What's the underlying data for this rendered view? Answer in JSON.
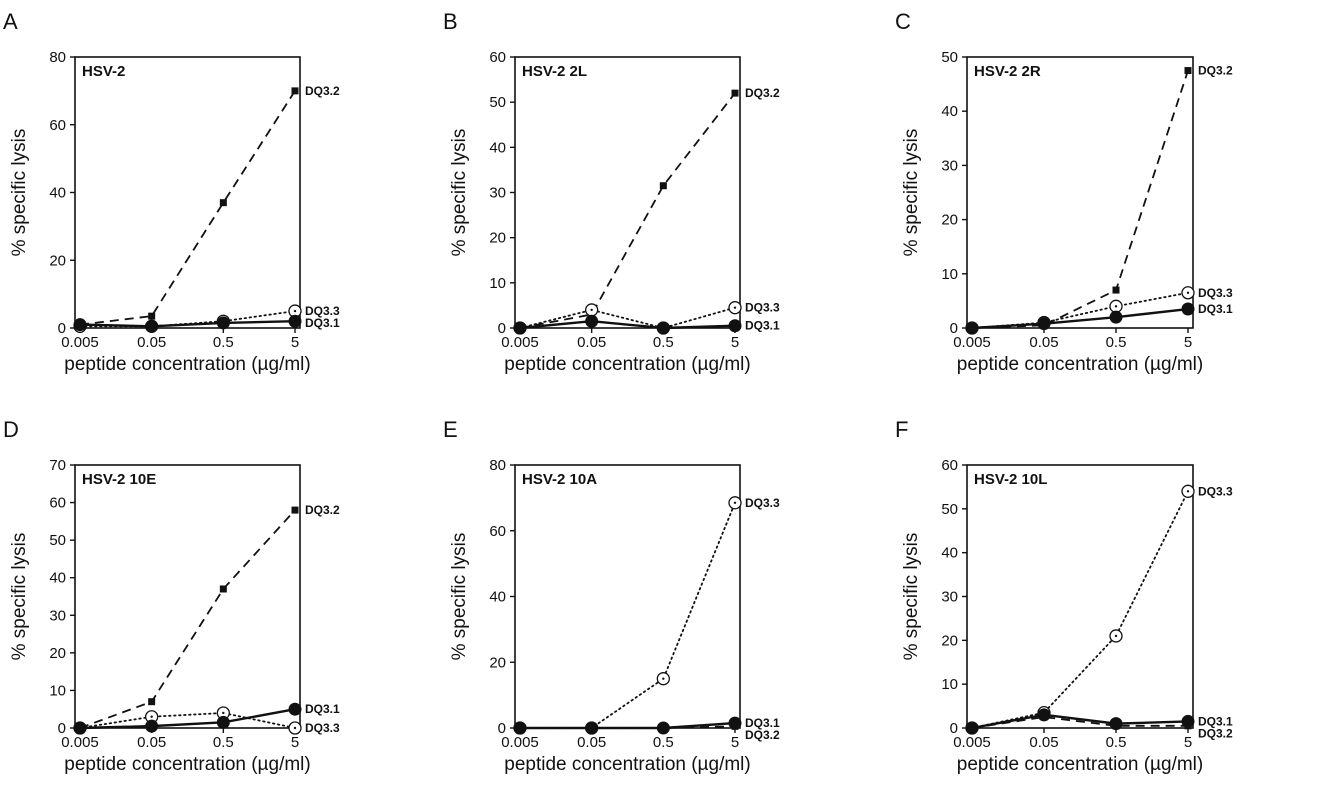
{
  "chart_data": [
    {
      "panel": "A",
      "type": "line",
      "title": "HSV-2",
      "xlabel": "peptide concentration (µg/ml)",
      "ylabel": "% specific lysis",
      "x_scale": "log",
      "x": [
        0.005,
        0.05,
        0.5,
        5
      ],
      "x_tick_labels": [
        "0.005",
        "0.05",
        "0.5",
        "5"
      ],
      "ylim": [
        0,
        80
      ],
      "yticks": [
        0,
        20,
        40,
        60,
        80
      ],
      "series": [
        {
          "name": "DQ3.2",
          "style": "dashed",
          "marker": "square",
          "values": [
            1,
            3.5,
            37,
            70
          ]
        },
        {
          "name": "DQ3.3",
          "style": "dotted",
          "marker": "open-circle",
          "values": [
            0.5,
            0.5,
            2,
            5
          ]
        },
        {
          "name": "DQ3.1",
          "style": "solid",
          "marker": "filled-circle",
          "values": [
            1,
            0.5,
            1.5,
            2
          ]
        }
      ]
    },
    {
      "panel": "B",
      "type": "line",
      "title": "HSV-2 2L",
      "xlabel": "peptide concentration (µg/ml)",
      "ylabel": "% specific lysis",
      "x_scale": "log",
      "x": [
        0.005,
        0.05,
        0.5,
        5
      ],
      "x_tick_labels": [
        "0.005",
        "0.05",
        "0.5",
        "5"
      ],
      "ylim": [
        0,
        60
      ],
      "yticks": [
        0,
        10,
        20,
        30,
        40,
        50,
        60
      ],
      "series": [
        {
          "name": "DQ3.2",
          "style": "dashed",
          "marker": "square",
          "values": [
            0,
            3,
            31.5,
            52
          ]
        },
        {
          "name": "DQ3.3",
          "style": "dotted",
          "marker": "open-circle",
          "values": [
            0,
            4,
            0,
            4.5
          ]
        },
        {
          "name": "DQ3.1",
          "style": "solid",
          "marker": "filled-circle",
          "values": [
            0,
            1.5,
            0,
            0.5
          ]
        }
      ]
    },
    {
      "panel": "C",
      "type": "line",
      "title": "HSV-2 2R",
      "xlabel": "peptide concentration (µg/ml)",
      "ylabel": "% specific lysis",
      "x_scale": "log",
      "x": [
        0.005,
        0.05,
        0.5,
        5
      ],
      "x_tick_labels": [
        "0.005",
        "0.05",
        "0.5",
        "5"
      ],
      "ylim": [
        0,
        50
      ],
      "yticks": [
        0,
        10,
        20,
        30,
        40,
        50
      ],
      "series": [
        {
          "name": "DQ3.2",
          "style": "dashed",
          "marker": "square",
          "values": [
            0,
            0.5,
            7,
            47.5
          ]
        },
        {
          "name": "DQ3.3",
          "style": "dotted",
          "marker": "open-circle",
          "values": [
            0,
            1,
            4,
            6.5
          ]
        },
        {
          "name": "DQ3.1",
          "style": "solid",
          "marker": "filled-circle",
          "values": [
            0,
            0.8,
            2,
            3.5
          ]
        }
      ]
    },
    {
      "panel": "D",
      "type": "line",
      "title": "HSV-2 10E",
      "xlabel": "peptide concentration (µg/ml)",
      "ylabel": "% specific lysis",
      "x_scale": "log",
      "x": [
        0.005,
        0.05,
        0.5,
        5
      ],
      "x_tick_labels": [
        "0.005",
        "0.05",
        "0.5",
        "5"
      ],
      "ylim": [
        0,
        70
      ],
      "yticks": [
        0,
        10,
        20,
        30,
        40,
        50,
        60,
        70
      ],
      "series": [
        {
          "name": "DQ3.2",
          "style": "dashed",
          "marker": "square",
          "values": [
            0,
            7,
            37,
            58
          ]
        },
        {
          "name": "DQ3.3",
          "style": "dotted",
          "marker": "open-circle",
          "values": [
            0,
            3,
            4,
            0
          ]
        },
        {
          "name": "DQ3.1",
          "style": "solid",
          "marker": "filled-circle",
          "values": [
            0,
            0.5,
            1.5,
            5
          ]
        }
      ]
    },
    {
      "panel": "E",
      "type": "line",
      "title": "HSV-2 10A",
      "xlabel": "peptide concentration (µg/ml)",
      "ylabel": "% specific lysis",
      "x_scale": "log",
      "x": [
        0.005,
        0.05,
        0.5,
        5
      ],
      "x_tick_labels": [
        "0.005",
        "0.05",
        "0.5",
        "5"
      ],
      "ylim": [
        0,
        80
      ],
      "yticks": [
        0,
        20,
        40,
        60,
        80
      ],
      "series": [
        {
          "name": "DQ3.3",
          "style": "dotted",
          "marker": "open-circle",
          "values": [
            0,
            0,
            15,
            68.5
          ]
        },
        {
          "name": "DQ3.1",
          "style": "solid",
          "marker": "filled-circle",
          "values": [
            0,
            0,
            0,
            1.5
          ]
        },
        {
          "name": "DQ3.2",
          "style": "dashed",
          "marker": "square",
          "values": [
            0,
            0,
            0,
            0.5
          ]
        }
      ]
    },
    {
      "panel": "F",
      "type": "line",
      "title": "HSV-2 10L",
      "xlabel": "peptide concentration (µg/ml)",
      "ylabel": "% specific lysis",
      "x_scale": "log",
      "x": [
        0.005,
        0.05,
        0.5,
        5
      ],
      "x_tick_labels": [
        "0.005",
        "0.05",
        "0.5",
        "5"
      ],
      "ylim": [
        0,
        60
      ],
      "yticks": [
        0,
        10,
        20,
        30,
        40,
        50,
        60
      ],
      "series": [
        {
          "name": "DQ3.3",
          "style": "dotted",
          "marker": "open-circle",
          "values": [
            0,
            3.5,
            21,
            54
          ]
        },
        {
          "name": "DQ3.1",
          "style": "solid",
          "marker": "filled-circle",
          "values": [
            0,
            3,
            1,
            1.5
          ]
        },
        {
          "name": "DQ3.2",
          "style": "dashed",
          "marker": "square",
          "values": [
            0,
            2.5,
            0.5,
            0.5
          ]
        }
      ]
    }
  ]
}
